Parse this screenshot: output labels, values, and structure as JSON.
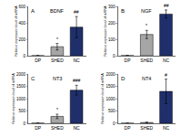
{
  "chart_data": [
    {
      "type": "bar",
      "panel": "A",
      "title": "BDNF",
      "y_label": "Relative expression level of mRNA",
      "categories": [
        "DP",
        "SHED",
        "NC"
      ],
      "values": [
        1,
        110,
        350
      ],
      "errors": [
        0,
        40,
        130
      ],
      "colors": [
        "#ffffff",
        "#a6a6a6",
        "#1f2f6b"
      ],
      "ylim": [
        0,
        600
      ],
      "yticks": [
        0,
        200,
        400,
        600
      ],
      "annotations": [
        {
          "category": "SHED",
          "text": "*"
        },
        {
          "category": "NC",
          "text": "##"
        }
      ]
    },
    {
      "type": "bar",
      "panel": "B",
      "title": "NGF",
      "y_label": "Relative expression level of mRNA",
      "categories": [
        "DP",
        "SHED",
        "NC"
      ],
      "values": [
        1,
        130,
        255
      ],
      "errors": [
        0,
        25,
        25
      ],
      "colors": [
        "#ffffff",
        "#a6a6a6",
        "#1f2f6b"
      ],
      "ylim": [
        0,
        300
      ],
      "yticks": [
        0,
        100,
        200,
        300
      ],
      "annotations": [
        {
          "category": "SHED",
          "text": "*"
        },
        {
          "category": "NC",
          "text": "##"
        }
      ]
    },
    {
      "type": "bar",
      "panel": "C",
      "title": "NT3",
      "y_label": "Relative expression level of mRNA",
      "categories": [
        "DP",
        "SHED",
        "NC"
      ],
      "values": [
        5,
        280,
        1350
      ],
      "errors": [
        0,
        90,
        200
      ],
      "colors": [
        "#ffffff",
        "#a6a6a6",
        "#1f2f6b"
      ],
      "ylim": [
        0,
        2000
      ],
      "yticks": [
        0,
        500,
        1000,
        1500,
        2000
      ],
      "annotations": [
        {
          "category": "SHED",
          "text": "*"
        },
        {
          "category": "NC",
          "text": "###"
        }
      ]
    },
    {
      "type": "bar",
      "panel": "D",
      "title": "NT4",
      "y_label": "Relative expression level of mRNA",
      "categories": [
        "DP",
        "SHED",
        "NC"
      ],
      "values": [
        3,
        30,
        1300
      ],
      "errors": [
        0,
        15,
        500
      ],
      "colors": [
        "#ffffff",
        "#a6a6a6",
        "#1f2f6b"
      ],
      "ylim": [
        0,
        2000
      ],
      "yticks": [
        0,
        500,
        1000,
        1500,
        2000
      ],
      "annotations": [
        {
          "category": "NC",
          "text": "#"
        }
      ]
    }
  ]
}
